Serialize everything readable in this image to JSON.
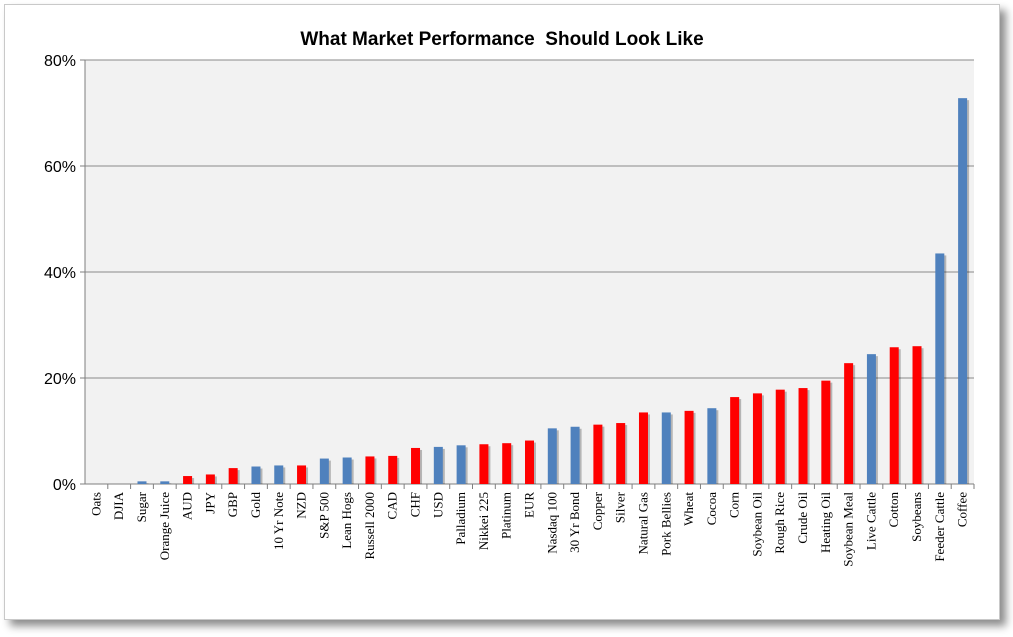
{
  "chart_data": {
    "type": "bar",
    "title": "What Market Performance  Should Look Like",
    "xlabel": "",
    "ylabel": "",
    "ylim": [
      0,
      80
    ],
    "y_ticks": [
      "0%",
      "20%",
      "40%",
      "60%",
      "80%"
    ],
    "grid": true,
    "legend": "none",
    "colors": {
      "blue": "#4f81bd",
      "red": "#ff0000",
      "plot_background": "#f2f2f2",
      "gridline": "#898989"
    },
    "categories": [
      "Oats",
      "DJIA",
      "Sugar",
      "Orange Juice",
      "AUD",
      "JPY",
      "GBP",
      "Gold",
      "10 Yr Note",
      "NZD",
      "S&P 500",
      "Lean Hogs",
      "Russell 2000",
      "CAD",
      "CHF",
      "USD",
      "Palladium",
      "Nikkei 225",
      "Platinum",
      "EUR",
      "Nasdaq 100",
      "30 Yr Bond",
      "Copper",
      "Silver",
      "Natural Gas",
      "Pork Bellies",
      "Wheat",
      "Cocoa",
      "Corn",
      "Soybean Oil",
      "Rough Rice",
      "Crude Oil",
      "Heating Oil",
      "Soybean Meal",
      "Live Cattle",
      "Cotton",
      "Soybeans",
      "Feeder Cattle",
      "Coffee"
    ],
    "values": [
      0,
      0,
      0.5,
      0.5,
      1.5,
      1.8,
      3,
      3.3,
      3.5,
      3.5,
      4.8,
      5,
      5.2,
      5.3,
      6.8,
      7,
      7.3,
      7.5,
      7.7,
      8.2,
      10.5,
      10.8,
      11.2,
      11.5,
      13.5,
      13.5,
      13.8,
      14.3,
      16.4,
      17.1,
      17.8,
      18.1,
      19.5,
      22.8,
      24.5,
      25.8,
      26,
      43.5,
      72.8
    ],
    "bar_colors": [
      "blue",
      "blue",
      "blue",
      "blue",
      "red",
      "red",
      "red",
      "blue",
      "blue",
      "red",
      "blue",
      "blue",
      "red",
      "red",
      "red",
      "blue",
      "blue",
      "red",
      "red",
      "red",
      "blue",
      "blue",
      "red",
      "red",
      "red",
      "blue",
      "red",
      "blue",
      "red",
      "red",
      "red",
      "red",
      "red",
      "red",
      "blue",
      "red",
      "red",
      "blue",
      "blue"
    ]
  }
}
